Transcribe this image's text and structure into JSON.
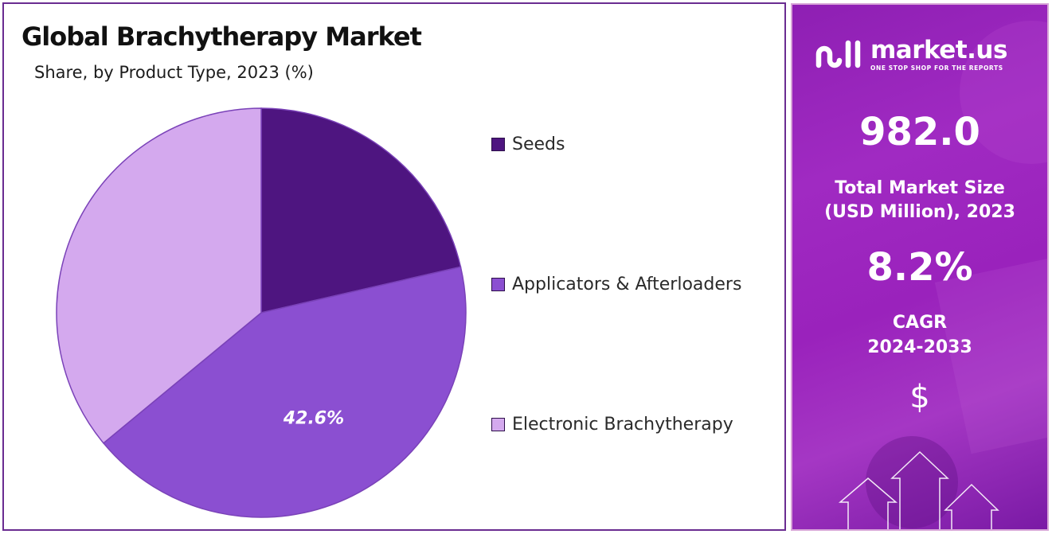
{
  "title": "Global Brachytherapy Market",
  "subtitle": "Share, by Product Type, 2023 (%)",
  "chart_data": {
    "type": "pie",
    "title": "Global Brachytherapy Market",
    "subtitle": "Share, by Product Type, 2023 (%)",
    "categories": [
      "Seeds",
      "Applicators & Afterloaders",
      "Electronic Brachytherapy"
    ],
    "values": [
      21.4,
      42.6,
      36.0
    ],
    "colors": [
      "#4e1580",
      "#8b4fd1",
      "#d4a9ee"
    ],
    "data_labels": [
      "",
      "42.6%",
      ""
    ],
    "legend_position": "right"
  },
  "sidebar": {
    "brand_name": "market.us",
    "brand_tagline": "ONE STOP SHOP FOR THE REPORTS",
    "market_size_value": "982.0",
    "market_size_label_1": "Total Market Size",
    "market_size_label_2": "(USD Million), 2023",
    "cagr_value": "8.2%",
    "cagr_label_1": "CAGR",
    "cagr_label_2": "2024-2033",
    "currency_symbol": "$"
  }
}
